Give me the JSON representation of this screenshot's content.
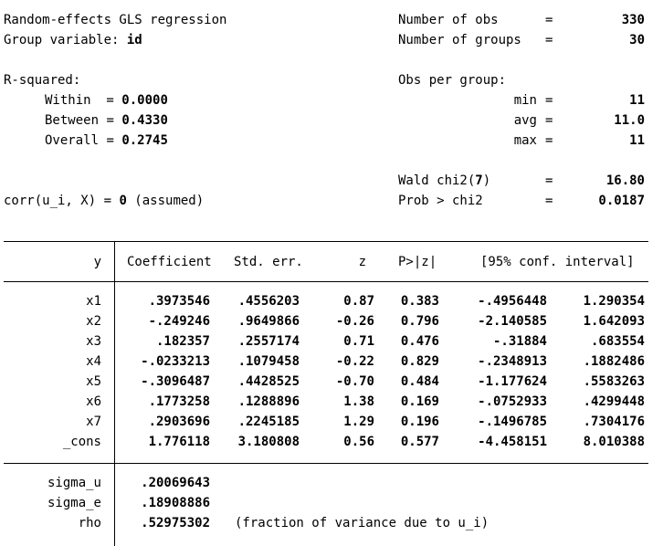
{
  "header": {
    "left": {
      "title": "Random-effects GLS regression",
      "group_label": "Group variable: ",
      "group_value": "id",
      "rsq_label": "R-squared:",
      "within_label": "Within",
      "within_value": "0.0000",
      "between_label": "Between",
      "between_value": "0.4330",
      "overall_label": "Overall",
      "overall_value": "0.2745",
      "corr_label": "corr(u_i, X) = ",
      "corr_value": "0",
      "corr_suffix": " (assumed)"
    },
    "right": {
      "nobs_label": "Number of obs",
      "nobs_value": "330",
      "ngroups_label": "Number of groups",
      "ngroups_value": "30",
      "opg_label": "Obs per group:",
      "min_label": "min",
      "min_value": "11",
      "avg_label": "avg",
      "avg_value": "11.0",
      "max_label": "max",
      "max_value": "11",
      "wald_label_pre": "Wald chi2(",
      "wald_df": "7",
      "wald_label_post": ")",
      "wald_value": "16.80",
      "prob_label": "Prob > chi2",
      "prob_value": "0.0187"
    },
    "eq": "=",
    "sep": "="
  },
  "table": {
    "columns": [
      "y",
      "Coefficient",
      "Std. err.",
      "z",
      "P>|z|",
      "[95% conf. interval]"
    ],
    "rows": [
      {
        "var": "x1",
        "coef": ".3973546",
        "se": ".4556203",
        "z": "0.87",
        "p": "0.383",
        "lo": "-.4956448",
        "hi": "1.290354"
      },
      {
        "var": "x2",
        "coef": "-.249246",
        "se": ".9649866",
        "z": "-0.26",
        "p": "0.796",
        "lo": "-2.140585",
        "hi": "1.642093"
      },
      {
        "var": "x3",
        "coef": ".182357",
        "se": ".2557174",
        "z": "0.71",
        "p": "0.476",
        "lo": "-.31884",
        "hi": ".683554"
      },
      {
        "var": "x4",
        "coef": "-.0233213",
        "se": ".1079458",
        "z": "-0.22",
        "p": "0.829",
        "lo": "-.2348913",
        "hi": ".1882486"
      },
      {
        "var": "x5",
        "coef": "-.3096487",
        "se": ".4428525",
        "z": "-0.70",
        "p": "0.484",
        "lo": "-1.177624",
        "hi": ".5583263"
      },
      {
        "var": "x6",
        "coef": ".1773258",
        "se": ".1288896",
        "z": "1.38",
        "p": "0.169",
        "lo": "-.0752933",
        "hi": ".4299448"
      },
      {
        "var": "x7",
        "coef": ".2903696",
        "se": ".2245185",
        "z": "1.29",
        "p": "0.196",
        "lo": "-.1496785",
        "hi": ".7304176"
      },
      {
        "var": "_cons",
        "coef": "1.776118",
        "se": "3.180808",
        "z": "0.56",
        "p": "0.577",
        "lo": "-4.458151",
        "hi": "8.010388"
      }
    ],
    "sigma": [
      {
        "var": "sigma_u",
        "value": ".20069643",
        "note": ""
      },
      {
        "var": "sigma_e",
        "value": ".18908886",
        "note": ""
      },
      {
        "var": "rho",
        "value": ".52975302",
        "note": "(fraction of variance due to u_i)"
      }
    ]
  }
}
